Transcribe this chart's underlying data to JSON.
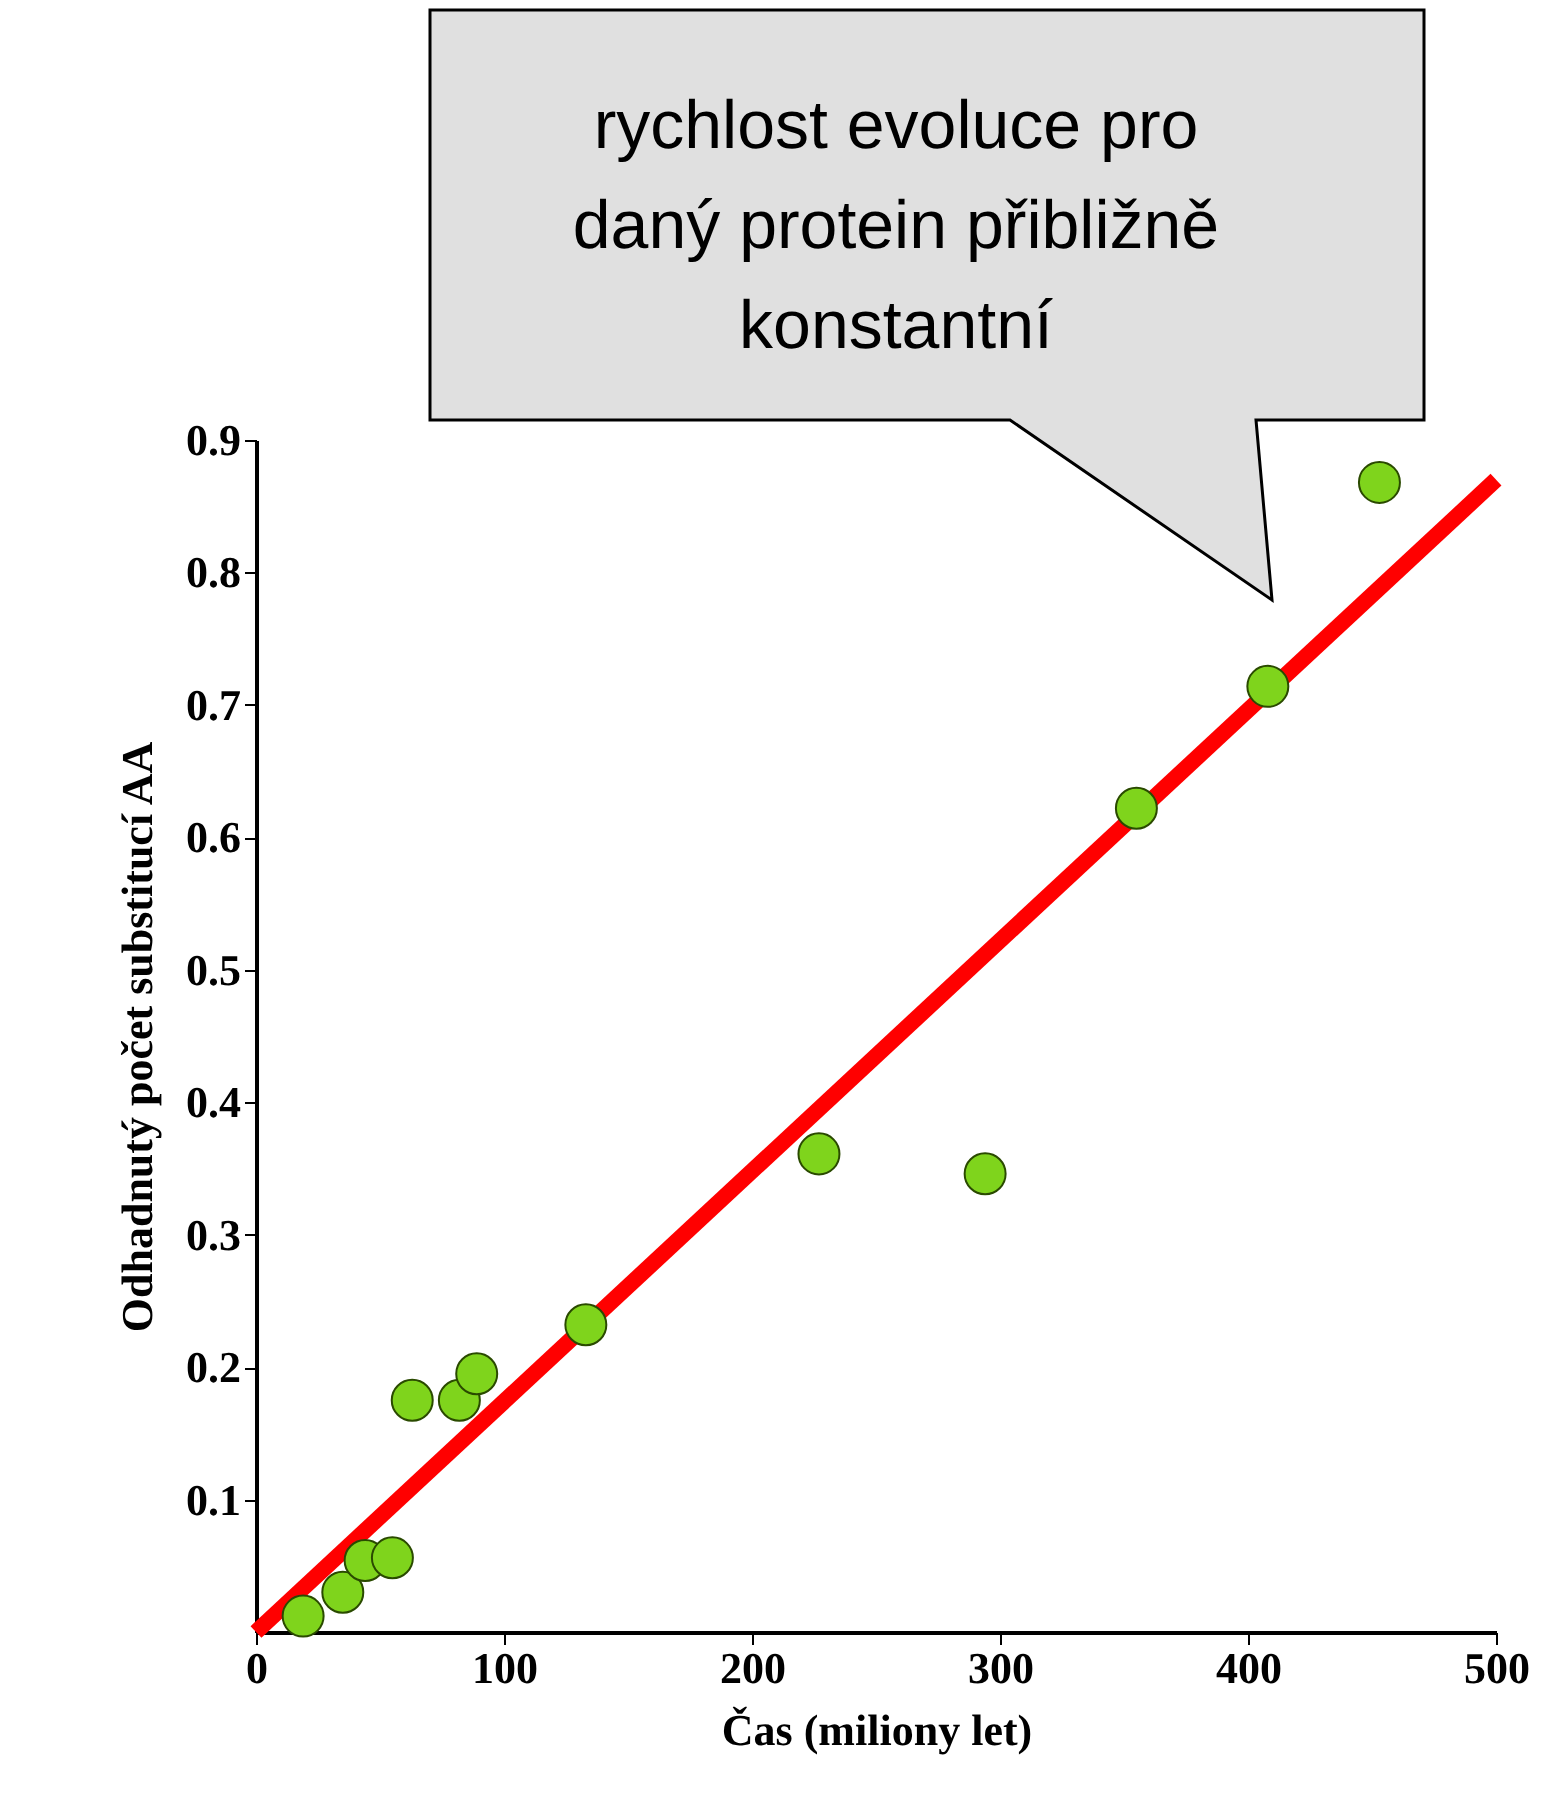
{
  "chart_data": {
    "type": "scatter",
    "xlabel": "Čas (miliony let)",
    "ylabel": "Odhadnutý počet substitucí AA",
    "annotations": [
      "rychlost evoluce pro daný protein přibližně konstantní"
    ],
    "xlim": [
      0,
      500
    ],
    "ylim": [
      0,
      0.9
    ],
    "xticks": [
      0,
      100,
      200,
      300,
      400,
      500
    ],
    "yticks": [
      0.1,
      0.2,
      0.3,
      0.4,
      0.5,
      0.6,
      0.7,
      0.8,
      0.9
    ],
    "grid": false,
    "series": [
      {
        "type": "line",
        "color": "#ff0000",
        "x": [
          0,
          500
        ],
        "values": [
          0,
          0.87
        ]
      },
      {
        "marker": "circle",
        "color": "#7fd41c",
        "x": [
          19,
          35,
          44,
          55,
          63,
          82,
          89,
          133,
          227,
          294,
          355,
          408,
          453
        ],
        "values": [
          0.012,
          0.03,
          0.054,
          0.056,
          0.175,
          0.175,
          0.195,
          0.232,
          0.361,
          0.346,
          0.622,
          0.714,
          0.868
        ]
      }
    ]
  }
}
